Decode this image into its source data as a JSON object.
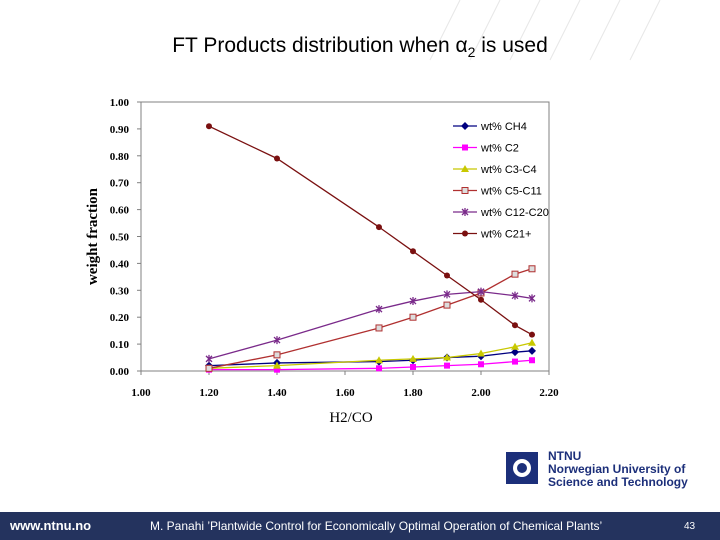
{
  "slide": {
    "title_prefix": "FT Products distribution when α",
    "title_sub": "2",
    "title_suffix": " is used",
    "institution": {
      "abbr": "NTNU",
      "line1": "Norwegian University of",
      "line2": "Science and Technology"
    },
    "footer": {
      "url": "www.ntnu.no",
      "citation": "M. Panahi ’Plantwide Control for Economically Optimal Operation of Chemical Plants’",
      "page": "43"
    }
  },
  "chart_data": {
    "type": "line",
    "title": "",
    "xlabel": "H2/CO",
    "ylabel": "weight fraction",
    "xlim": [
      1.0,
      2.2
    ],
    "ylim": [
      0.0,
      1.0
    ],
    "xticks": [
      "1.00",
      "1.20",
      "1.40",
      "1.60",
      "1.80",
      "2.00",
      "2.20"
    ],
    "yticks": [
      "0.00",
      "0.10",
      "0.20",
      "0.30",
      "0.40",
      "0.50",
      "0.60",
      "0.70",
      "0.80",
      "0.90",
      "1.00"
    ],
    "legend_position": "top-right",
    "x": [
      1.2,
      1.4,
      1.7,
      1.8,
      1.9,
      2.0,
      2.1,
      2.15
    ],
    "series": [
      {
        "name": "wt% CH4",
        "color": "#000080",
        "marker": "diamond",
        "values": [
          0.02,
          0.03,
          0.035,
          0.04,
          0.05,
          0.055,
          0.07,
          0.075
        ]
      },
      {
        "name": "wt% C2",
        "color": "#ff00ff",
        "marker": "square",
        "values": [
          0.005,
          0.005,
          0.01,
          0.015,
          0.02,
          0.025,
          0.035,
          0.04
        ]
      },
      {
        "name": "wt% C3-C4",
        "color": "#c8c800",
        "marker": "triangle",
        "values": [
          0.01,
          0.02,
          0.04,
          0.045,
          0.05,
          0.065,
          0.09,
          0.105
        ]
      },
      {
        "name": "wt% C5-C11",
        "color": "#b03030",
        "marker": "square-open",
        "values": [
          0.01,
          0.06,
          0.16,
          0.2,
          0.245,
          0.29,
          0.36,
          0.38
        ]
      },
      {
        "name": "wt% C12-C20",
        "color": "#7a2a8a",
        "marker": "star",
        "values": [
          0.045,
          0.115,
          0.23,
          0.26,
          0.285,
          0.295,
          0.28,
          0.27
        ]
      },
      {
        "name": "wt% C21+",
        "color": "#7a1010",
        "marker": "circle",
        "values": [
          0.91,
          0.79,
          0.535,
          0.445,
          0.355,
          0.265,
          0.17,
          0.135
        ]
      }
    ]
  }
}
